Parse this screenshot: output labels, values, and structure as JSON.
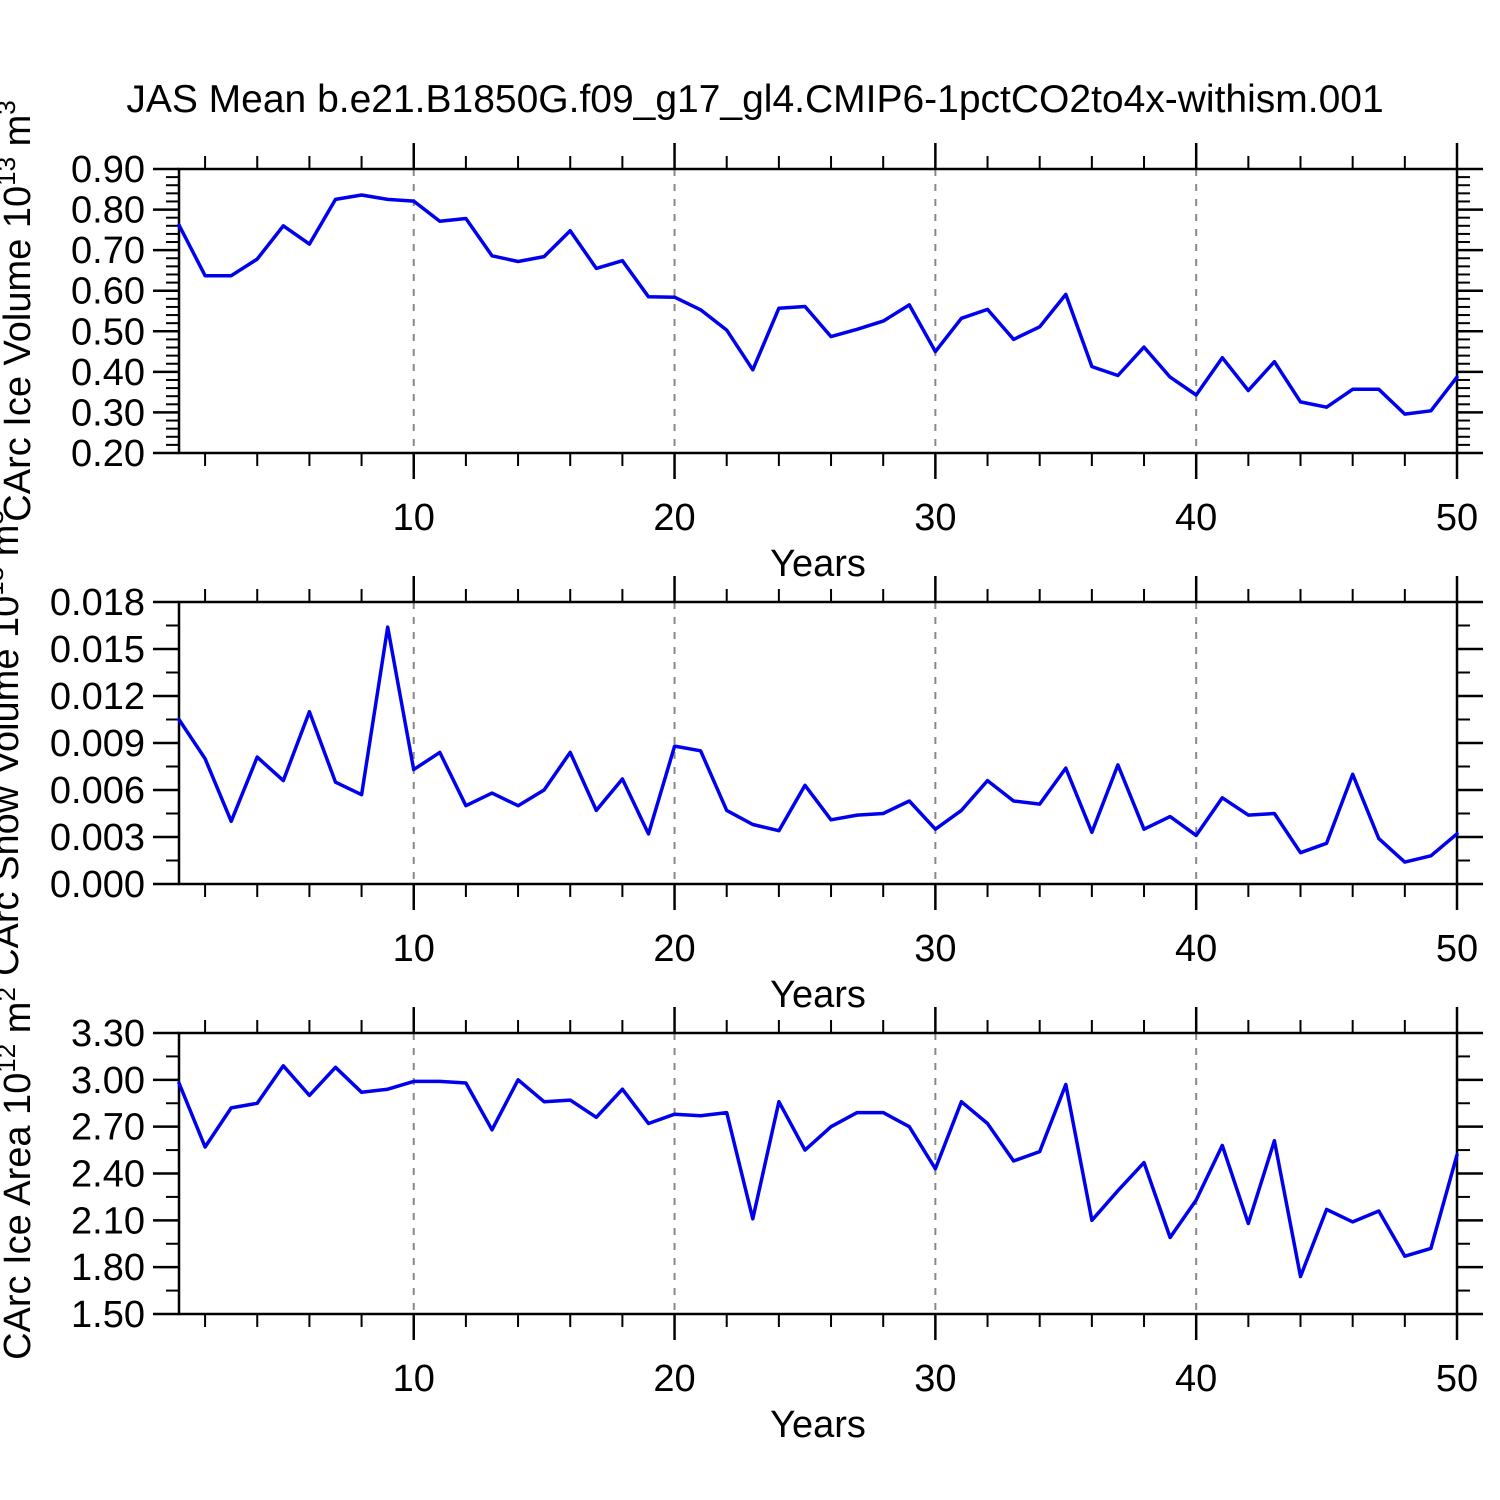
{
  "title": "JAS Mean b.e21.B1850G.f09_g17_gl4.CMIP6-1pctCO2to4x-withism.001",
  "line_color": "#0000ee",
  "grid_color": "#888888",
  "axis_color": "#000000",
  "chart_data": [
    {
      "type": "line",
      "name": "carc-ice-volume",
      "ylabel": "CArc Ice Volume 10^13 m^3",
      "ylabel_segments": [
        [
          "CArc Ice Volume 10",
          0
        ],
        [
          "13",
          1
        ],
        [
          " m",
          0
        ],
        [
          "3",
          1
        ]
      ],
      "xlabel": "Years",
      "xlim": [
        1,
        50
      ],
      "x_step": 1,
      "xticks_major": [
        10,
        20,
        30,
        40,
        50
      ],
      "xtick_minor_step": 2,
      "grid_x": [
        10,
        20,
        30,
        40
      ],
      "ylim": [
        0.2,
        0.9
      ],
      "ytick_major": 0.1,
      "ytick_minor": 0.02,
      "ytick_decimals": 2,
      "values": [
        0.762,
        0.637,
        0.637,
        0.678,
        0.76,
        0.715,
        0.825,
        0.836,
        0.825,
        0.821,
        0.771,
        0.778,
        0.686,
        0.672,
        0.684,
        0.748,
        0.655,
        0.674,
        0.585,
        0.584,
        0.553,
        0.503,
        0.405,
        0.557,
        0.561,
        0.487,
        0.505,
        0.525,
        0.565,
        0.45,
        0.532,
        0.554,
        0.48,
        0.511,
        0.591,
        0.413,
        0.391,
        0.461,
        0.387,
        0.343,
        0.435,
        0.354,
        0.425,
        0.326,
        0.313,
        0.357,
        0.357,
        0.296,
        0.304,
        0.387
      ]
    },
    {
      "type": "line",
      "name": "carc-snow-volume",
      "ylabel": "CArc Snow Volume 10^13 m^3",
      "ylabel_segments": [
        [
          "CArc Snow Volume 10",
          0
        ],
        [
          "13",
          1
        ],
        [
          " m",
          0
        ],
        [
          "3",
          1
        ]
      ],
      "xlabel": "Years",
      "xlim": [
        1,
        50
      ],
      "x_step": 1,
      "xticks_major": [
        10,
        20,
        30,
        40,
        50
      ],
      "xtick_minor_step": 2,
      "grid_x": [
        10,
        20,
        30,
        40
      ],
      "ylim": [
        0.0,
        0.018
      ],
      "ytick_major": 0.003,
      "ytick_minor": 0.0015,
      "ytick_decimals": 3,
      "values": [
        0.0105,
        0.008,
        0.004,
        0.0081,
        0.0066,
        0.011,
        0.0065,
        0.0057,
        0.0164,
        0.0073,
        0.0084,
        0.005,
        0.0058,
        0.005,
        0.006,
        0.0084,
        0.0047,
        0.0067,
        0.0032,
        0.0088,
        0.0085,
        0.0047,
        0.0038,
        0.0034,
        0.0063,
        0.0041,
        0.0044,
        0.0045,
        0.0053,
        0.0035,
        0.0047,
        0.0066,
        0.0053,
        0.0051,
        0.0074,
        0.0033,
        0.0076,
        0.0035,
        0.0043,
        0.0031,
        0.0055,
        0.0044,
        0.0045,
        0.002,
        0.0026,
        0.007,
        0.0029,
        0.0014,
        0.0018,
        0.0032
      ]
    },
    {
      "type": "line",
      "name": "carc-ice-area",
      "ylabel": "CArc Ice Area 10^12 m^2",
      "ylabel_segments": [
        [
          "CArc Ice Area 10",
          0
        ],
        [
          "12",
          1
        ],
        [
          " m",
          0
        ],
        [
          "2",
          1
        ]
      ],
      "xlabel": "Years",
      "xlim": [
        1,
        50
      ],
      "x_step": 1,
      "xticks_major": [
        10,
        20,
        30,
        40,
        50
      ],
      "xtick_minor_step": 2,
      "grid_x": [
        10,
        20,
        30,
        40
      ],
      "ylim": [
        1.5,
        3.3
      ],
      "ytick_major": 0.3,
      "ytick_minor": 0.15,
      "ytick_decimals": 2,
      "values": [
        2.98,
        2.57,
        2.82,
        2.85,
        3.09,
        2.9,
        3.08,
        2.92,
        2.94,
        2.99,
        2.99,
        2.98,
        2.68,
        3.0,
        2.86,
        2.87,
        2.76,
        2.94,
        2.72,
        2.78,
        2.77,
        2.79,
        2.11,
        2.86,
        2.55,
        2.7,
        2.79,
        2.79,
        2.7,
        2.43,
        2.86,
        2.72,
        2.48,
        2.54,
        2.97,
        2.1,
        2.29,
        2.47,
        1.99,
        2.23,
        2.58,
        2.08,
        2.61,
        1.74,
        2.17,
        2.09,
        2.16,
        1.87,
        1.92,
        2.52
      ]
    }
  ]
}
